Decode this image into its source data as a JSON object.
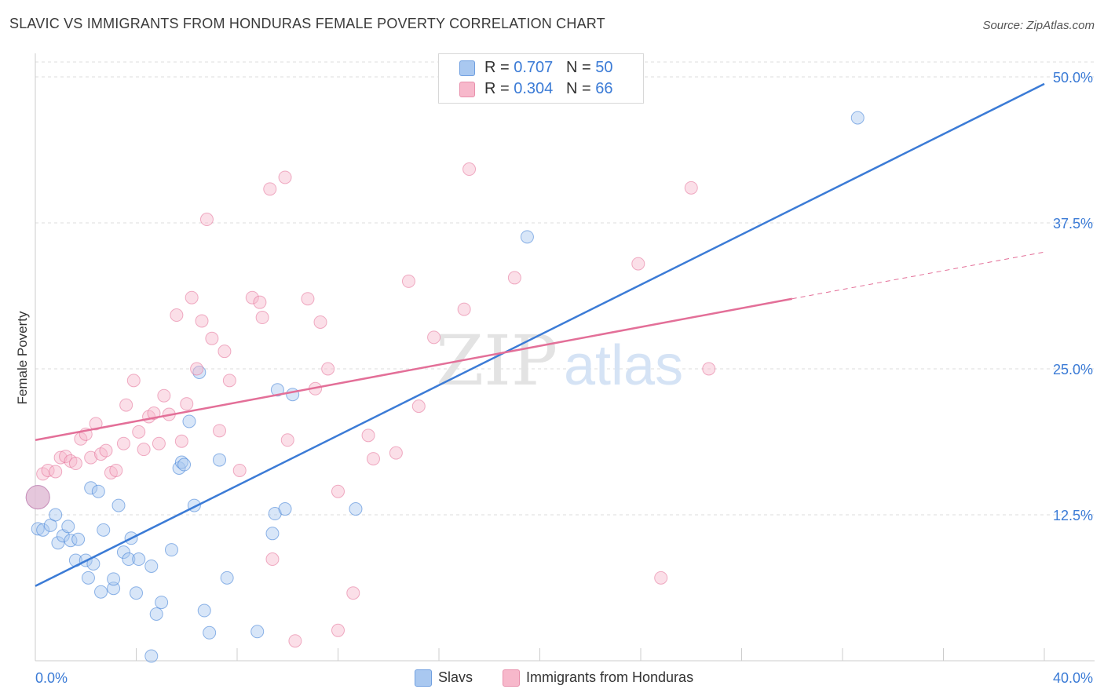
{
  "title": "SLAVIC VS IMMIGRANTS FROM HONDURAS FEMALE POVERTY CORRELATION CHART",
  "source": "Source: ZipAtlas.com",
  "watermark": {
    "part1": "ZIP",
    "part2": "atlas"
  },
  "legend": {
    "rows": [
      {
        "r_label": "R = ",
        "r_value": "0.707",
        "n_label": "N = ",
        "n_value": "50",
        "color": "#a9c8f0"
      },
      {
        "r_label": "R = ",
        "r_value": "0.304",
        "n_label": "N = ",
        "n_value": "66",
        "color": "#f7b8cb"
      }
    ]
  },
  "bottom_legend": [
    {
      "label": "Slavs",
      "color": "#a9c8f0"
    },
    {
      "label": "Immigrants from Honduras",
      "color": "#f7b8cb"
    }
  ],
  "chart_data": {
    "type": "scatter",
    "title": "SLAVIC VS IMMIGRANTS FROM HONDURAS FEMALE POVERTY CORRELATION CHART",
    "xlabel": "",
    "ylabel": "Female Poverty",
    "xlim": [
      0,
      40
    ],
    "ylim": [
      0,
      50
    ],
    "x_tick_labels": [
      "0.0%",
      "40.0%"
    ],
    "y_ticks": [
      12.5,
      25.0,
      37.5,
      50.0
    ],
    "y_tick_labels": [
      "12.5%",
      "25.0%",
      "37.5%",
      "50.0%"
    ],
    "grid": true,
    "legend_position": "top-center",
    "series": [
      {
        "name": "Slavs",
        "color": "#3b7bd6",
        "fill": "#a9c8f0",
        "trend": {
          "x": [
            0,
            40
          ],
          "y": [
            6.4,
            49.4
          ]
        },
        "points": [
          [
            0.1,
            11.3
          ],
          [
            0.3,
            11.2
          ],
          [
            0.6,
            11.6
          ],
          [
            0.8,
            12.5
          ],
          [
            0.9,
            10.1
          ],
          [
            1.1,
            10.7
          ],
          [
            1.3,
            11.5
          ],
          [
            1.4,
            10.3
          ],
          [
            1.7,
            10.4
          ],
          [
            1.6,
            8.6
          ],
          [
            2.0,
            8.6
          ],
          [
            2.1,
            7.1
          ],
          [
            2.3,
            8.3
          ],
          [
            2.2,
            14.8
          ],
          [
            2.5,
            14.5
          ],
          [
            2.7,
            11.2
          ],
          [
            2.6,
            5.9
          ],
          [
            3.1,
            6.2
          ],
          [
            3.1,
            7.0
          ],
          [
            3.3,
            13.3
          ],
          [
            3.5,
            9.3
          ],
          [
            3.8,
            10.5
          ],
          [
            3.7,
            8.7
          ],
          [
            4.1,
            8.7
          ],
          [
            4.0,
            5.8
          ],
          [
            4.6,
            8.1
          ],
          [
            4.8,
            4.0
          ],
          [
            5.0,
            5.0
          ],
          [
            5.4,
            9.5
          ],
          [
            4.6,
            0.4
          ],
          [
            5.7,
            16.5
          ],
          [
            5.8,
            17.0
          ],
          [
            5.9,
            16.8
          ],
          [
            6.1,
            20.5
          ],
          [
            6.3,
            13.3
          ],
          [
            6.5,
            24.7
          ],
          [
            6.7,
            4.3
          ],
          [
            6.9,
            2.4
          ],
          [
            7.3,
            17.2
          ],
          [
            7.6,
            7.1
          ],
          [
            8.8,
            2.5
          ],
          [
            9.4,
            10.9
          ],
          [
            9.5,
            12.6
          ],
          [
            9.6,
            23.2
          ],
          [
            9.9,
            13.0
          ],
          [
            10.2,
            22.8
          ],
          [
            12.7,
            13.0
          ],
          [
            19.5,
            36.3
          ],
          [
            32.6,
            46.5
          ],
          [
            0.1,
            14.0
          ]
        ]
      },
      {
        "name": "Immigrants from Honduras",
        "color": "#e36f98",
        "fill": "#f7b8cb",
        "trend": {
          "x": [
            0,
            30
          ],
          "y": [
            18.9,
            31.0
          ],
          "dash_x": [
            30,
            40
          ],
          "dash_y": [
            31.0,
            35.0
          ]
        },
        "points": [
          [
            0.3,
            16.0
          ],
          [
            0.5,
            16.3
          ],
          [
            0.8,
            16.2
          ],
          [
            1.0,
            17.4
          ],
          [
            1.2,
            17.5
          ],
          [
            1.4,
            17.1
          ],
          [
            1.6,
            16.9
          ],
          [
            1.8,
            19.0
          ],
          [
            2.0,
            19.4
          ],
          [
            2.2,
            17.4
          ],
          [
            2.4,
            20.3
          ],
          [
            2.6,
            17.7
          ],
          [
            2.8,
            18.0
          ],
          [
            3.0,
            16.1
          ],
          [
            3.2,
            16.3
          ],
          [
            3.5,
            18.6
          ],
          [
            3.6,
            21.9
          ],
          [
            3.9,
            24.0
          ],
          [
            4.1,
            19.6
          ],
          [
            4.3,
            18.1
          ],
          [
            4.5,
            20.9
          ],
          [
            4.7,
            21.2
          ],
          [
            4.9,
            18.6
          ],
          [
            5.1,
            22.7
          ],
          [
            5.3,
            21.1
          ],
          [
            5.6,
            29.6
          ],
          [
            5.8,
            18.8
          ],
          [
            6.0,
            22.0
          ],
          [
            6.2,
            31.1
          ],
          [
            6.4,
            25.0
          ],
          [
            6.6,
            29.1
          ],
          [
            6.8,
            37.8
          ],
          [
            7.0,
            27.6
          ],
          [
            7.3,
            19.7
          ],
          [
            7.5,
            26.5
          ],
          [
            7.7,
            24.0
          ],
          [
            8.1,
            16.3
          ],
          [
            8.6,
            31.1
          ],
          [
            8.9,
            30.7
          ],
          [
            9.0,
            29.4
          ],
          [
            9.3,
            40.4
          ],
          [
            9.4,
            8.7
          ],
          [
            9.9,
            41.4
          ],
          [
            10.0,
            18.9
          ],
          [
            10.3,
            1.7
          ],
          [
            10.8,
            31.0
          ],
          [
            11.1,
            23.3
          ],
          [
            11.3,
            29.0
          ],
          [
            11.6,
            25.0
          ],
          [
            12.0,
            14.5
          ],
          [
            12.0,
            2.6
          ],
          [
            12.6,
            5.8
          ],
          [
            13.2,
            19.3
          ],
          [
            13.4,
            17.3
          ],
          [
            14.3,
            17.8
          ],
          [
            14.8,
            32.5
          ],
          [
            15.2,
            21.8
          ],
          [
            15.8,
            27.7
          ],
          [
            17.0,
            30.1
          ],
          [
            17.2,
            42.1
          ],
          [
            19.0,
            32.8
          ],
          [
            23.9,
            34.0
          ],
          [
            24.8,
            7.1
          ],
          [
            26.0,
            40.5
          ],
          [
            26.7,
            25.0
          ],
          [
            0.1,
            14.0
          ]
        ]
      }
    ]
  }
}
